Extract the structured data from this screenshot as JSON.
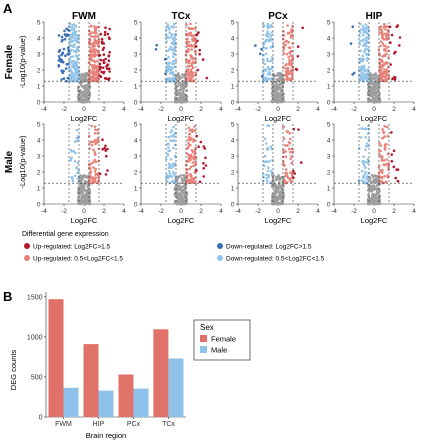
{
  "panel_labels": {
    "a": "A",
    "b": "B"
  },
  "colors": {
    "up_strong": "#b2182b",
    "up_mild": "#e8827a",
    "down_strong": "#3a6fb8",
    "down_mild": "#93c4ea",
    "nonsig": "#9e9e9e",
    "female_bar": "#e0726a",
    "male_bar": "#8fc2ea"
  },
  "chart_data": [
    {
      "type": "scatter",
      "subtype": "volcano-grid",
      "columns": [
        "FWM",
        "TCx",
        "PCx",
        "HIP"
      ],
      "rows": [
        "Female",
        "Male"
      ],
      "xlabel": "Log2FC",
      "ylabel": "-Log10(p-value)",
      "xlim": [
        -4,
        4
      ],
      "ylim": [
        0,
        5
      ],
      "x_ticks": [
        -4,
        -2,
        0,
        2,
        4
      ],
      "y_ticks": [
        0,
        1,
        2,
        3,
        4,
        5
      ],
      "vertical_thresholds": [
        -1.5,
        -0.5,
        0.5,
        1.5
      ],
      "horizontal_threshold": 1.3,
      "legend_title": "Differential gene expression",
      "legend": [
        {
          "key": "up_strong",
          "label": "Up-regulated: Log2FC>1.5"
        },
        {
          "key": "down_strong",
          "label": "Down-regulated: Log2FC>1.5"
        },
        {
          "key": "up_mild",
          "label": "Up-regulated: 0.5<Log2FC<1.5"
        },
        {
          "key": "down_mild",
          "label": "Down-regulated: 0.5<Log2FC<1.5"
        }
      ],
      "panels": [
        {
          "row": "Female",
          "col": "FWM",
          "counts": {
            "up_strong": 48,
            "up_mild": 160,
            "down_strong": 44,
            "down_mild": 150,
            "nonsig": 170
          }
        },
        {
          "row": "Female",
          "col": "TCx",
          "counts": {
            "up_strong": 10,
            "up_mild": 110,
            "down_strong": 4,
            "down_mild": 110,
            "nonsig": 170
          }
        },
        {
          "row": "Female",
          "col": "PCx",
          "counts": {
            "up_strong": 5,
            "up_mild": 80,
            "down_strong": 4,
            "down_mild": 70,
            "nonsig": 170
          }
        },
        {
          "row": "Female",
          "col": "HIP",
          "counts": {
            "up_strong": 14,
            "up_mild": 115,
            "down_strong": 4,
            "down_mild": 110,
            "nonsig": 170
          }
        },
        {
          "row": "Male",
          "col": "FWM",
          "counts": {
            "up_strong": 10,
            "up_mild": 70,
            "down_strong": 0,
            "down_mild": 25,
            "nonsig": 170
          }
        },
        {
          "row": "Male",
          "col": "TCx",
          "counts": {
            "up_strong": 12,
            "up_mild": 85,
            "down_strong": 0,
            "down_mild": 55,
            "nonsig": 170
          }
        },
        {
          "row": "Male",
          "col": "PCx",
          "counts": {
            "up_strong": 6,
            "up_mild": 45,
            "down_strong": 0,
            "down_mild": 30,
            "nonsig": 170
          }
        },
        {
          "row": "Male",
          "col": "HIP",
          "counts": {
            "up_strong": 10,
            "up_mild": 60,
            "down_strong": 0,
            "down_mild": 45,
            "nonsig": 170
          }
        }
      ]
    },
    {
      "type": "bar",
      "categories": [
        "FWM",
        "HIP",
        "PCx",
        "TCx"
      ],
      "series": [
        {
          "name": "Female",
          "color_key": "female_bar",
          "values": [
            1470,
            910,
            530,
            1095
          ]
        },
        {
          "name": "Male",
          "color_key": "male_bar",
          "values": [
            365,
            330,
            355,
            730
          ]
        }
      ],
      "xlabel": "Brain region",
      "ylabel": "DEG counts",
      "ylim": [
        0,
        1560
      ],
      "y_ticks": [
        0,
        500,
        1000,
        1500
      ],
      "legend_title": "Sex",
      "legend_placement": "top-right"
    }
  ]
}
